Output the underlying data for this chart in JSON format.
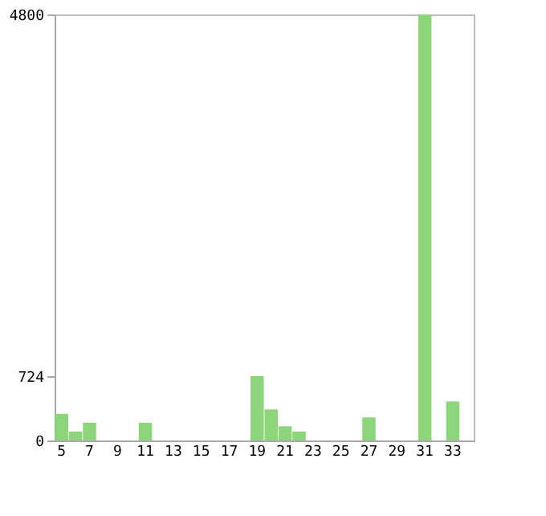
{
  "chart_data": {
    "type": "bar",
    "categories": [
      "5",
      null,
      "7",
      null,
      "9",
      null,
      "11",
      null,
      "13",
      null,
      "15",
      null,
      "17",
      null,
      "19",
      null,
      "21",
      null,
      "23",
      null,
      "25",
      null,
      "27",
      null,
      "29",
      null,
      "31",
      null,
      "33",
      null
    ],
    "values": [
      300,
      100,
      200,
      0,
      0,
      0,
      200,
      0,
      0,
      0,
      0,
      0,
      0,
      0,
      724,
      350,
      160,
      100,
      0,
      0,
      0,
      0,
      260,
      0,
      0,
      0,
      4800,
      0,
      440,
      0
    ],
    "color": "#8cd57a",
    "ylim": [
      0,
      4800
    ],
    "yticks": [
      0,
      724,
      4800
    ],
    "grid": false
  }
}
